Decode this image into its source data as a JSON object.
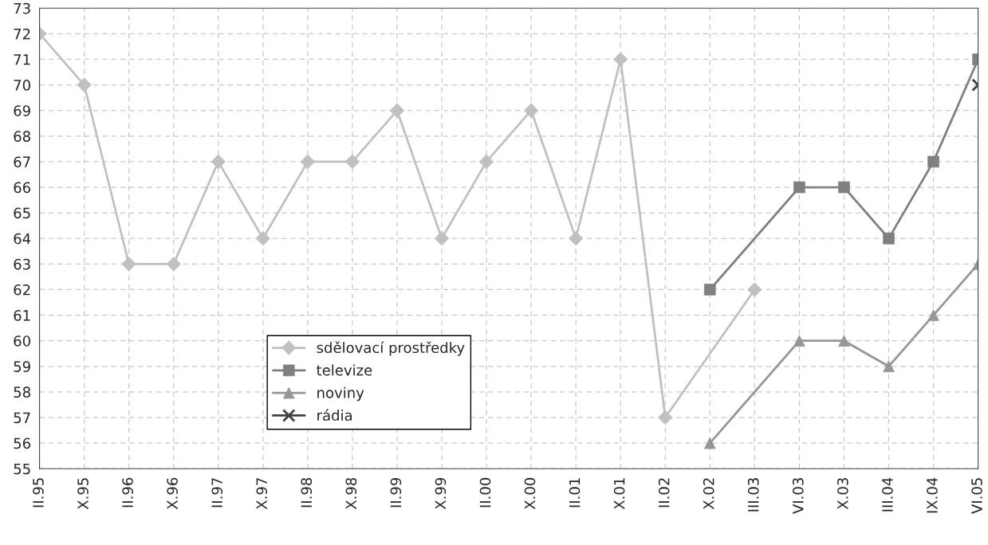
{
  "chart_data": {
    "type": "line",
    "categories": [
      "II.95",
      "X.95",
      "II.96",
      "X.96",
      "II.97",
      "X.97",
      "II.98",
      "X.98",
      "II.99",
      "X.99",
      "II.00",
      "X.00",
      "II.01",
      "X.01",
      "II.02",
      "X.02",
      "III.03",
      "VI.03",
      "X.03",
      "III.04",
      "IX.04",
      "VI.05"
    ],
    "series": [
      {
        "name": "sdělovací prostředky",
        "color": "#c0c0c0",
        "marker": "diamond",
        "values": [
          72,
          70,
          63,
          63,
          67,
          64,
          67,
          67,
          69,
          64,
          67,
          69,
          64,
          71,
          57,
          null,
          62,
          null,
          null,
          null,
          null,
          null
        ]
      },
      {
        "name": "televize",
        "color": "#808080",
        "marker": "square",
        "values": [
          null,
          null,
          null,
          null,
          null,
          null,
          null,
          null,
          null,
          null,
          null,
          null,
          null,
          null,
          null,
          62,
          null,
          66,
          66,
          64,
          67,
          71
        ]
      },
      {
        "name": "noviny",
        "color": "#969696",
        "marker": "triangle",
        "values": [
          null,
          null,
          null,
          null,
          null,
          null,
          null,
          null,
          null,
          null,
          null,
          null,
          null,
          null,
          null,
          56,
          null,
          60,
          60,
          59,
          61,
          63
        ]
      },
      {
        "name": "rádia",
        "color": "#404040",
        "marker": "cross",
        "values": [
          null,
          null,
          null,
          null,
          null,
          null,
          null,
          null,
          null,
          null,
          null,
          null,
          null,
          null,
          null,
          null,
          null,
          null,
          null,
          null,
          null,
          70
        ]
      }
    ],
    "ylim": [
      55,
      73
    ],
    "yticks": [
      55,
      56,
      57,
      58,
      59,
      60,
      61,
      62,
      63,
      64,
      65,
      66,
      67,
      68,
      69,
      70,
      71,
      72,
      73
    ],
    "grid": true,
    "legend": "bottom left",
    "line_style": "solid"
  }
}
